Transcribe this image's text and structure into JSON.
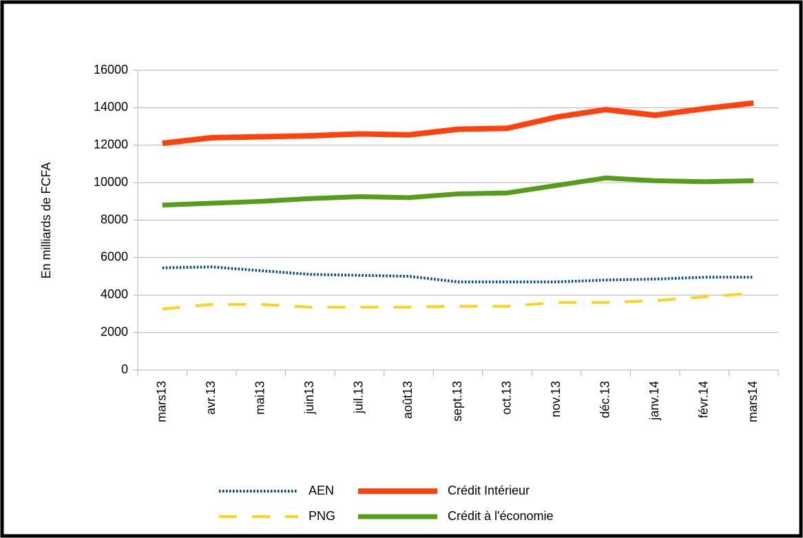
{
  "chart_data": {
    "type": "line",
    "y_label": "En milliards de FCFA",
    "categories": [
      "mars13",
      "avr.13",
      "mai13",
      "juin13",
      "juil.13",
      "août13",
      "sept.13",
      "oct.13",
      "nov.13",
      "déc.13",
      "janv.14",
      "févr.14",
      "mars14"
    ],
    "series": [
      {
        "name": "AEN",
        "color": "#004586",
        "values": [
          5450,
          5500,
          5300,
          5100,
          5050,
          5000,
          4700,
          4700,
          4700,
          4800,
          4850,
          4950,
          4950
        ]
      },
      {
        "name": "Crédit Intérieur",
        "color": "#ff420e",
        "values": [
          12100,
          12400,
          12450,
          12500,
          12600,
          12550,
          12850,
          12900,
          13500,
          13900,
          13600,
          13950,
          14250
        ]
      },
      {
        "name": "PNG",
        "color": "#ffd320",
        "values": [
          3250,
          3500,
          3500,
          3350,
          3350,
          3350,
          3400,
          3400,
          3600,
          3600,
          3700,
          3900,
          4100
        ]
      },
      {
        "name": "Crédit à l'économie",
        "color": "#579d1c",
        "values": [
          8800,
          8900,
          9000,
          9150,
          9250,
          9200,
          9400,
          9450,
          9850,
          10250,
          10100,
          10050,
          10100
        ]
      }
    ],
    "ylim": [
      0,
      16000
    ],
    "yticks": [
      0,
      2000,
      4000,
      6000,
      8000,
      10000,
      12000,
      14000,
      16000
    ],
    "grid": true,
    "legend": "bottom"
  }
}
